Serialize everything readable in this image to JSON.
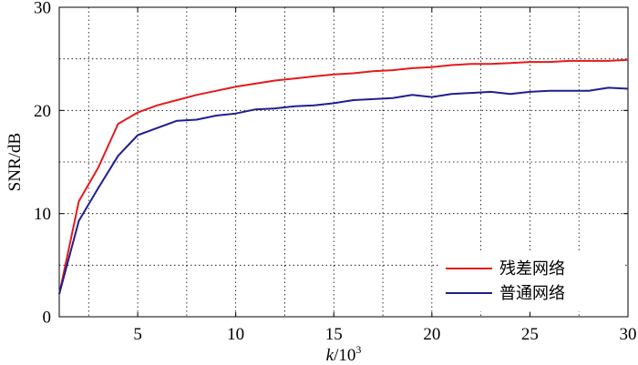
{
  "chart_data": {
    "type": "line",
    "title": "",
    "xlabel": "k/10³",
    "xlabel_parts": {
      "main": "k/10",
      "sup": "3"
    },
    "ylabel": "SNR/dB",
    "xlim": [
      1,
      30
    ],
    "ylim": [
      0,
      30
    ],
    "xticks": [
      5,
      10,
      15,
      20,
      25,
      30
    ],
    "yticks": [
      0,
      10,
      20,
      30
    ],
    "xtick_labels": [
      "5",
      "10",
      "15",
      "20",
      "25",
      "30"
    ],
    "ytick_labels": [
      "0",
      "10",
      "20",
      "30"
    ],
    "grid": true,
    "legend_position": "bottom-right",
    "x": [
      1,
      2,
      3,
      4,
      5,
      6,
      7,
      8,
      9,
      10,
      11,
      12,
      13,
      14,
      15,
      16,
      17,
      18,
      19,
      20,
      21,
      22,
      23,
      24,
      25,
      26,
      27,
      28,
      29,
      30
    ],
    "series": [
      {
        "name": "残差网络",
        "color": "#e41a1c",
        "values": [
          2.2,
          11.2,
          14.5,
          18.7,
          19.8,
          20.5,
          21.0,
          21.5,
          21.9,
          22.3,
          22.6,
          22.9,
          23.1,
          23.3,
          23.5,
          23.6,
          23.8,
          23.9,
          24.1,
          24.2,
          24.4,
          24.5,
          24.5,
          24.6,
          24.7,
          24.7,
          24.8,
          24.8,
          24.8,
          24.9
        ]
      },
      {
        "name": "普通网络",
        "color": "#1f1f8f",
        "values": [
          2.2,
          9.3,
          12.5,
          15.6,
          17.6,
          18.3,
          19.0,
          19.1,
          19.5,
          19.7,
          20.1,
          20.2,
          20.4,
          20.5,
          20.7,
          21.0,
          21.1,
          21.2,
          21.5,
          21.3,
          21.6,
          21.7,
          21.8,
          21.6,
          21.8,
          21.9,
          21.9,
          21.9,
          22.2,
          22.1
        ]
      }
    ]
  }
}
